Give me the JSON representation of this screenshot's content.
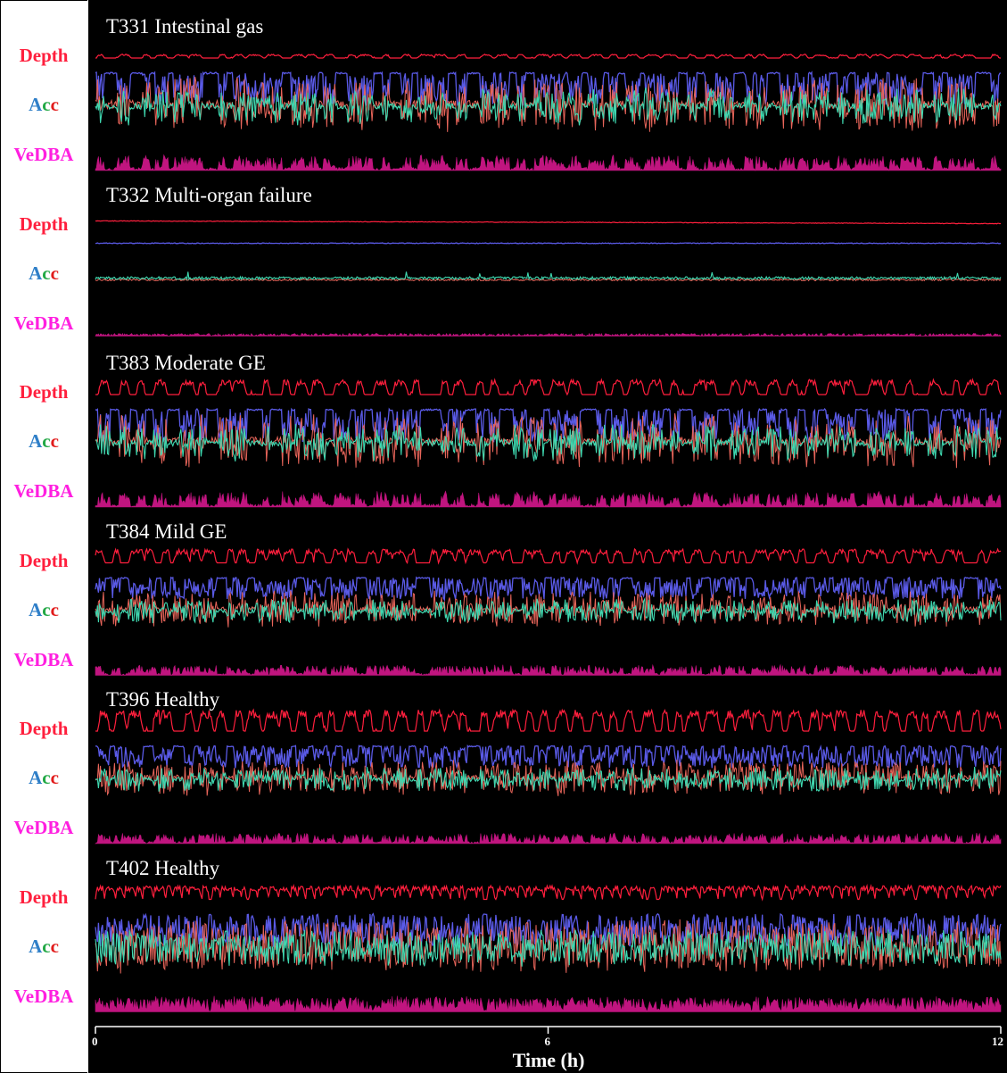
{
  "chart_data": {
    "type": "line",
    "xlabel": "Time (h)",
    "x_ticks": [
      "0",
      "6",
      "12"
    ],
    "xlim": [
      0,
      12
    ],
    "row_labels": {
      "depth": "Depth",
      "acc": {
        "a": "A",
        "c1": "c",
        "c2": "c"
      },
      "vedba": "VeDBA"
    },
    "colors": {
      "depth": "#ff1f3d",
      "acc_x": "#5a5ae6",
      "acc_y": "#e8655a",
      "acc_z": "#3fd8b0",
      "vedba": "#c0157f",
      "acc_label_a": "#2f7fc8",
      "acc_label_c1": "#22a845",
      "acc_label_c2": "#e11b1b",
      "vedba_label": "#ff1fe0",
      "background": "#000000"
    },
    "panels": [
      {
        "title": "T331 Intestinal gas",
        "dives": 48,
        "activity": "high",
        "dive_depth": 0.15
      },
      {
        "title": "T332 Multi-organ failure",
        "dives": 0,
        "activity": "very-low",
        "dive_depth": 0.02
      },
      {
        "title": "T383 Moderate GE",
        "dives": 46,
        "activity": "high",
        "dive_depth": 0.6
      },
      {
        "title": "T384 Mild GE",
        "dives": 58,
        "activity": "moderate",
        "dive_depth": 0.55
      },
      {
        "title": "T396 Healthy",
        "dives": 55,
        "activity": "moderate",
        "dive_depth": 0.85
      },
      {
        "title": "T402 Healthy",
        "dives": 95,
        "activity": "high",
        "dive_depth": 0.55
      }
    ]
  }
}
